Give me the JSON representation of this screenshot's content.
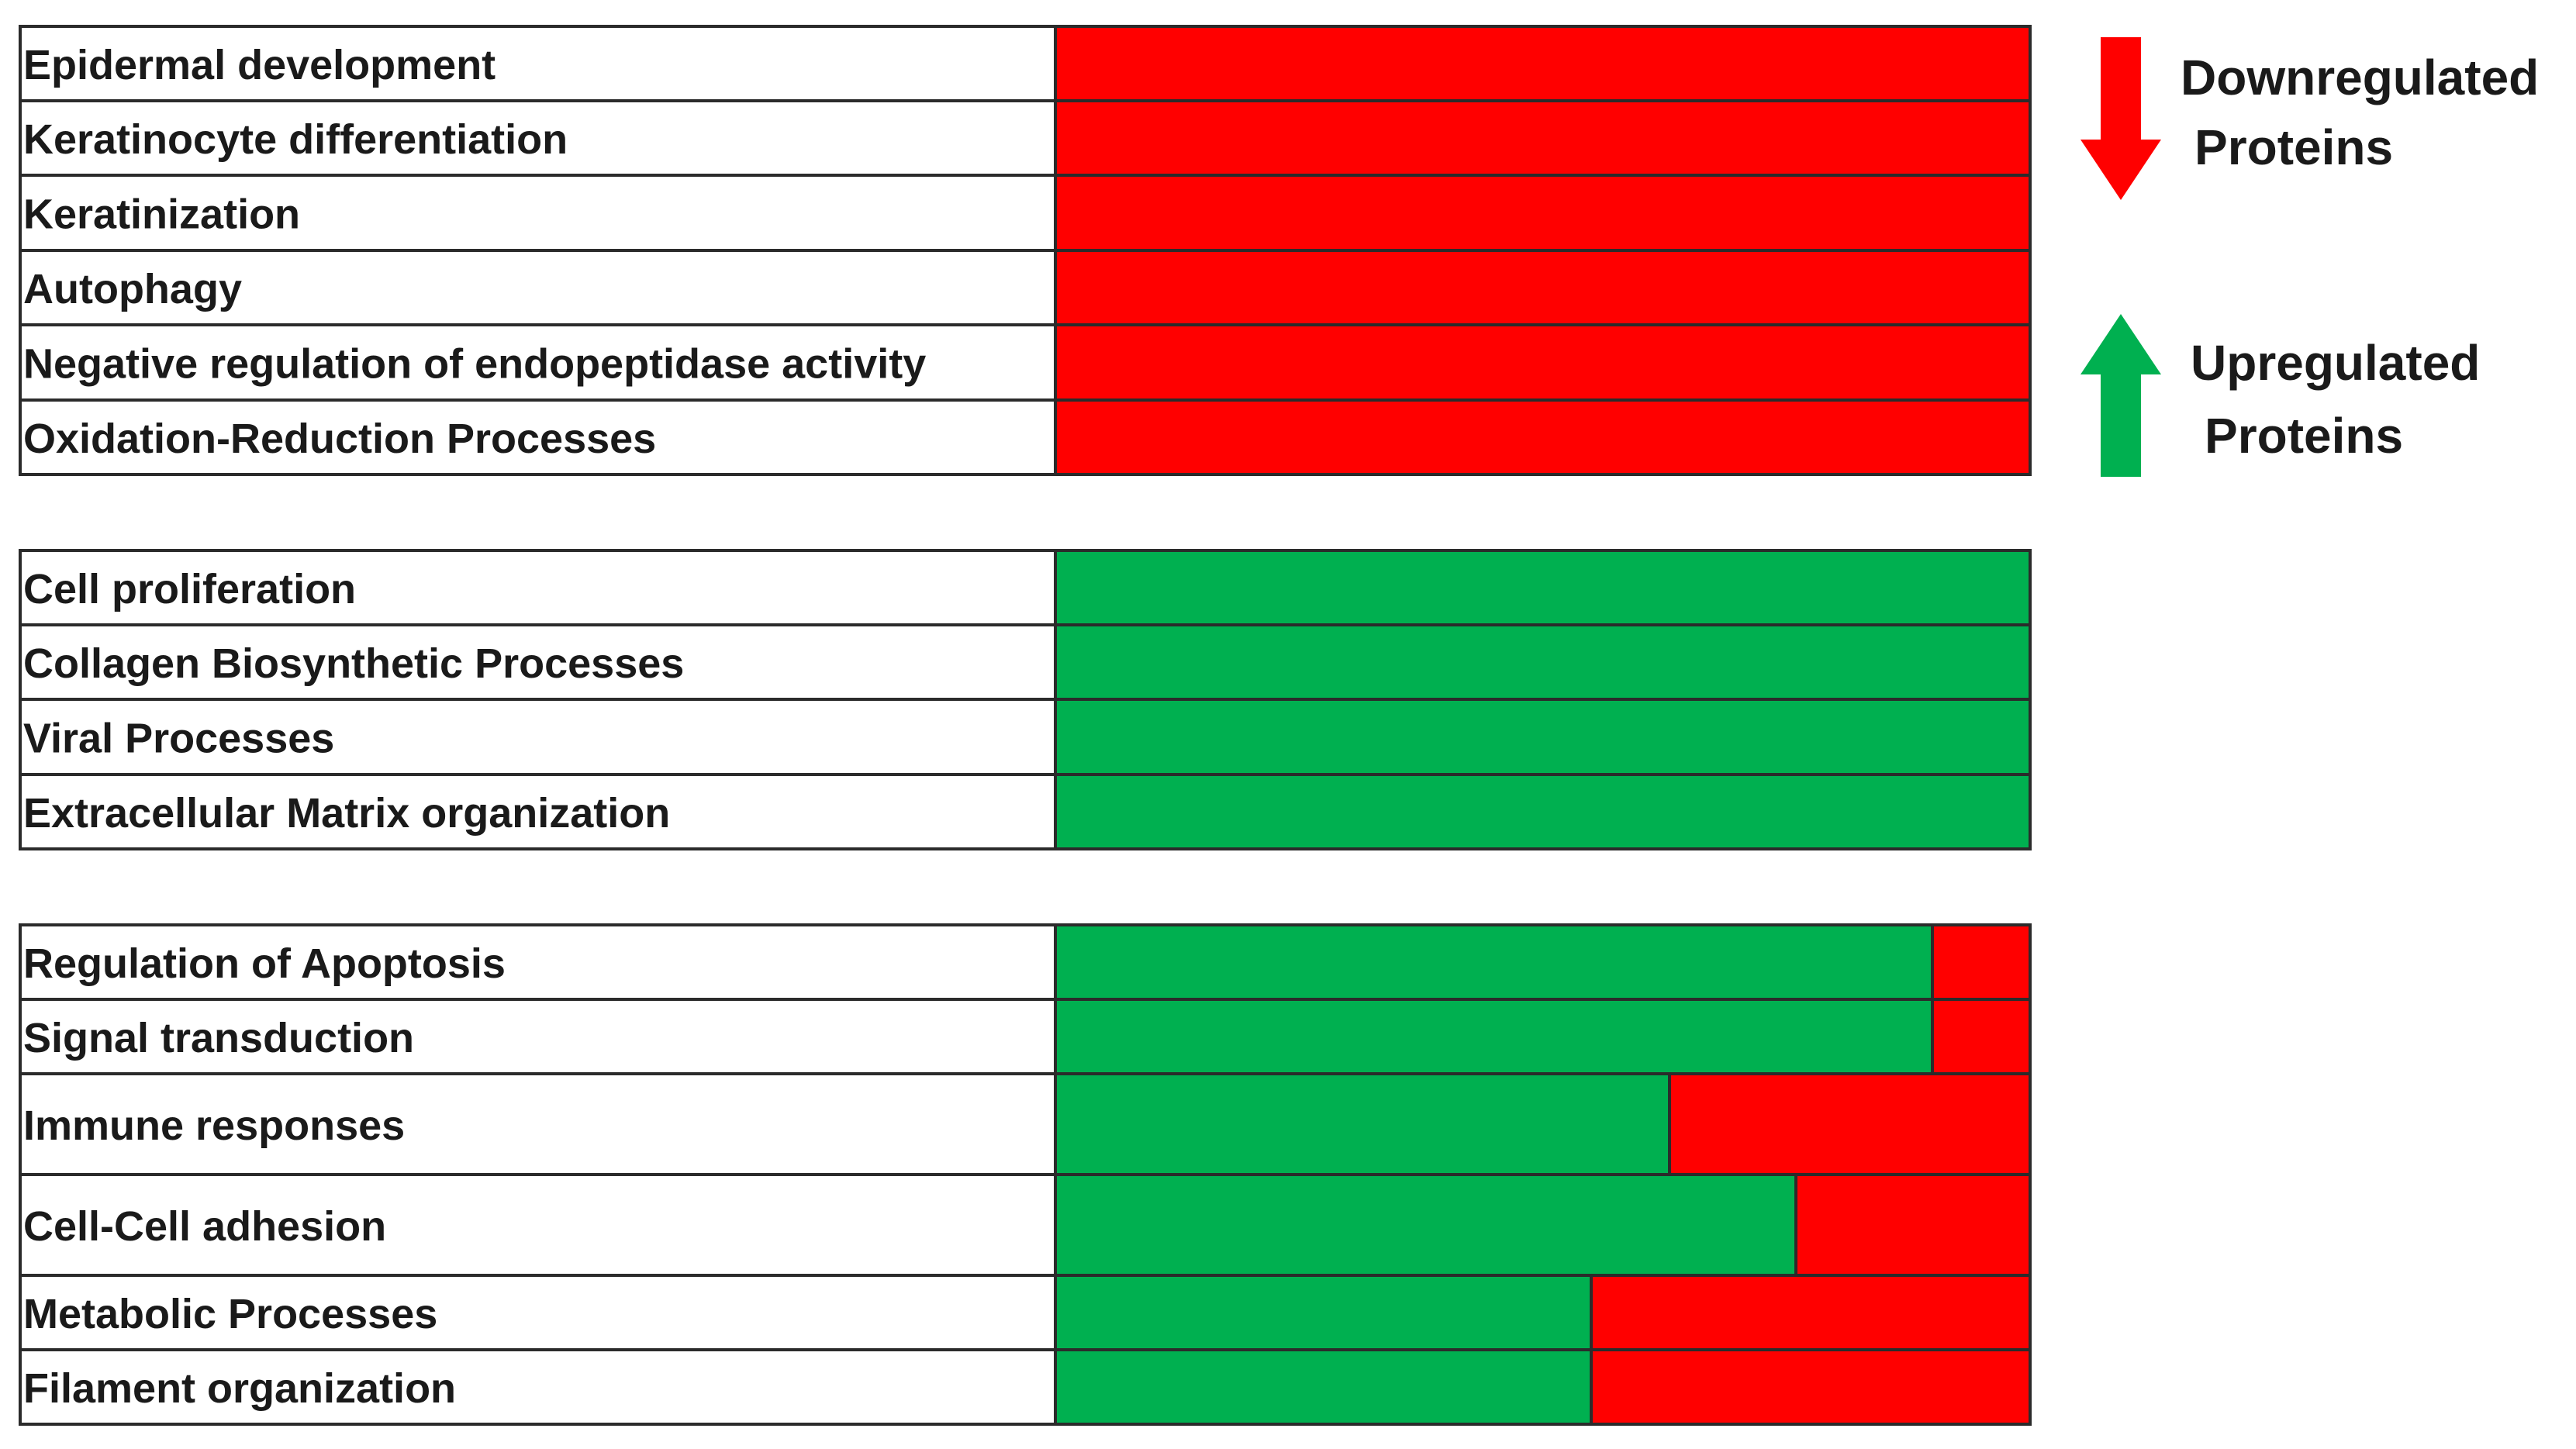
{
  "colors": {
    "up": "#00b050",
    "down": "#ff0000",
    "border": "#2b2b2b",
    "label_bg": "#ffffff"
  },
  "legend": [
    {
      "key": "down",
      "icon": "down-arrow-icon",
      "line1": "Downregulated",
      "line2": "Proteins"
    },
    {
      "key": "up",
      "icon": "up-arrow-icon",
      "line1": "Upregulated",
      "line2": "Proteins"
    }
  ],
  "chart_data": {
    "type": "bar",
    "orientation": "horizontal",
    "stacked": true,
    "value_scale": "fraction of category, 0-1",
    "series": [
      {
        "key": "up",
        "name": "Upregulated Proteins"
      },
      {
        "key": "down",
        "name": "Downregulated Proteins"
      }
    ],
    "groups": [
      {
        "rows": [
          {
            "label": "Epidermal development",
            "up": 0.0,
            "down": 1.0
          },
          {
            "label": "Keratinocyte differentiation",
            "up": 0.0,
            "down": 1.0
          },
          {
            "label": "Keratinization",
            "up": 0.0,
            "down": 1.0
          },
          {
            "label": "Autophagy",
            "up": 0.0,
            "down": 1.0
          },
          {
            "label": "Negative regulation of endopeptidase activity",
            "up": 0.0,
            "down": 1.0
          },
          {
            "label": "Oxidation-Reduction Processes",
            "up": 0.0,
            "down": 1.0
          }
        ]
      },
      {
        "rows": [
          {
            "label": "Cell proliferation",
            "up": 1.0,
            "down": 0.0
          },
          {
            "label": "Collagen Biosynthetic Processes",
            "up": 1.0,
            "down": 0.0
          },
          {
            "label": "Viral Processes",
            "up": 1.0,
            "down": 0.0
          },
          {
            "label": "Extracellular Matrix organization",
            "up": 1.0,
            "down": 0.0
          }
        ]
      },
      {
        "rows": [
          {
            "label": "Regulation of Apoptosis",
            "up": 0.9,
            "down": 0.1
          },
          {
            "label": "Signal transduction",
            "up": 0.9,
            "down": 0.1
          },
          {
            "label": "Immune responses",
            "up": 0.63,
            "down": 0.37
          },
          {
            "label": "Cell-Cell adhesion",
            "up": 0.76,
            "down": 0.24
          },
          {
            "label": "Metabolic Processes",
            "up": 0.55,
            "down": 0.45
          },
          {
            "label": "Filament organization",
            "up": 0.55,
            "down": 0.45
          }
        ]
      }
    ]
  }
}
